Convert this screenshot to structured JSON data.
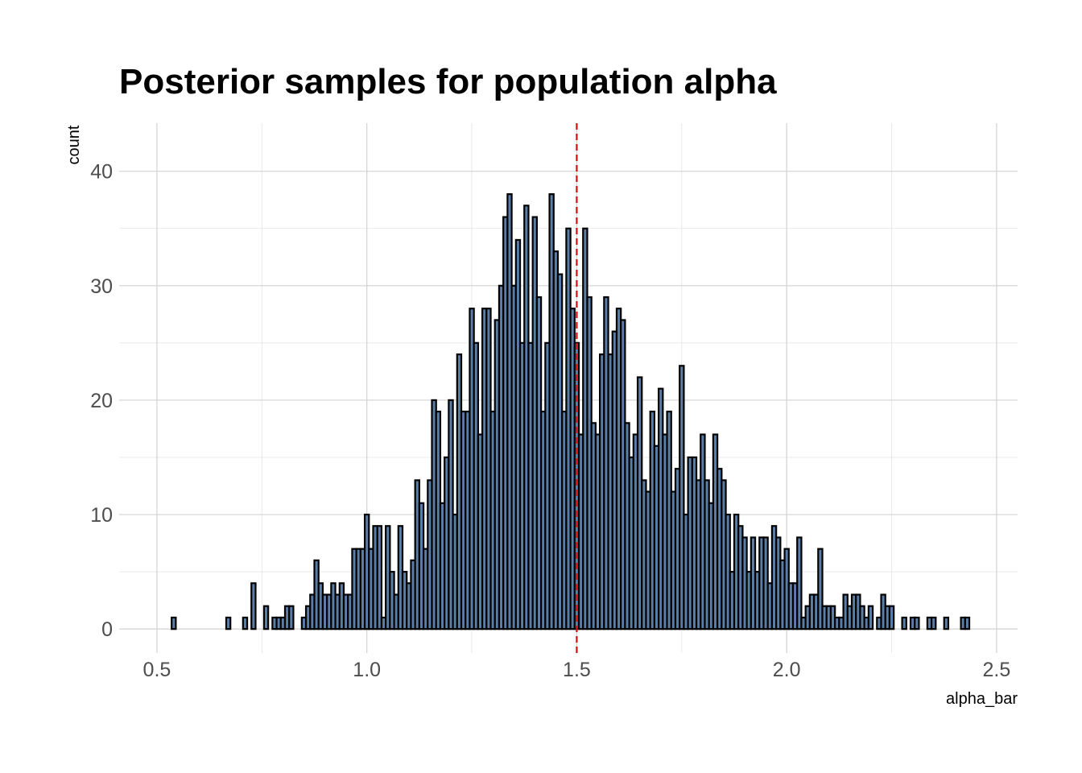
{
  "chart_data": {
    "type": "bar",
    "title": "Posterior samples for population alpha",
    "xlabel": "alpha_bar",
    "ylabel": "count",
    "xlim": [
      0.41,
      2.55
    ],
    "ylim": [
      -2.1,
      44.2
    ],
    "x_ticks": [
      "0.5",
      "1.0",
      "1.5",
      "2.0",
      "2.5"
    ],
    "x_tick_values": [
      0.5,
      1.0,
      1.5,
      2.0,
      2.5
    ],
    "y_ticks": [
      "0",
      "10",
      "20",
      "30",
      "40"
    ],
    "y_tick_values": [
      0,
      10,
      20,
      30,
      40
    ],
    "grid": true,
    "legend": "none",
    "bins": {
      "start": 0.535,
      "width": 0.01,
      "values": [
        1,
        0,
        0,
        0,
        0,
        0,
        0,
        0,
        0,
        0,
        0,
        0,
        0,
        1,
        0,
        0,
        0,
        1,
        0,
        4,
        0,
        0,
        2,
        0,
        1,
        1,
        1,
        2,
        2,
        0,
        0,
        1,
        2,
        3,
        6,
        4,
        3,
        3,
        4,
        3,
        4,
        3,
        3,
        7,
        7,
        7,
        10,
        7,
        9,
        9,
        1,
        9,
        5,
        3,
        9,
        5,
        4,
        6,
        13,
        11,
        7,
        13,
        20,
        19,
        11,
        15,
        20,
        10,
        24,
        19,
        19,
        28,
        25,
        17,
        28,
        28,
        19,
        27,
        30,
        36,
        38,
        30,
        34,
        25,
        37,
        25,
        36,
        29,
        19,
        25,
        38,
        33,
        31,
        19,
        35,
        28,
        25,
        17,
        35,
        29,
        18,
        17,
        24,
        29,
        24,
        26,
        28,
        27,
        18,
        15,
        17,
        22,
        13,
        12,
        19,
        16,
        21,
        17,
        19,
        12,
        14,
        23,
        10,
        15,
        15,
        13,
        17,
        13,
        11,
        17,
        14,
        13,
        10,
        5,
        10,
        9,
        8,
        5,
        8,
        5,
        8,
        8,
        4,
        9,
        8,
        6,
        7,
        4,
        4,
        8,
        1,
        2,
        3,
        3,
        7,
        2,
        2,
        2,
        1,
        1,
        3,
        2,
        3,
        3,
        2,
        1,
        2,
        0,
        1,
        3,
        2,
        2,
        0,
        0,
        1,
        0,
        1,
        1,
        0,
        0,
        1,
        1,
        0,
        0,
        1,
        0,
        0,
        0,
        1,
        1
      ],
      "fill_color": "#5b7ea7",
      "edge_color": "#000000"
    },
    "reference_line": {
      "x": 1.5,
      "color": "#cc1111",
      "style": "dashed"
    }
  }
}
